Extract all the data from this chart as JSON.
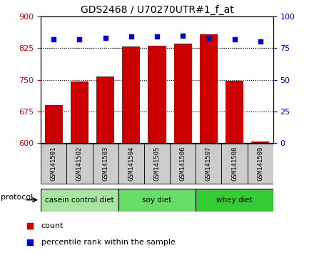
{
  "title": "GDS2468 / U70270UTR#1_f_at",
  "samples": [
    "GSM141501",
    "GSM141502",
    "GSM141503",
    "GSM141504",
    "GSM141505",
    "GSM141506",
    "GSM141507",
    "GSM141508",
    "GSM141509"
  ],
  "counts": [
    690,
    745,
    757,
    828,
    831,
    835,
    858,
    748,
    603
  ],
  "percentile_ranks": [
    82,
    82,
    83,
    84,
    84,
    85,
    83,
    82,
    80
  ],
  "ylim_left": [
    600,
    900
  ],
  "ylim_right": [
    0,
    100
  ],
  "yticks_left": [
    600,
    675,
    750,
    825,
    900
  ],
  "yticks_right": [
    0,
    25,
    50,
    75,
    100
  ],
  "bar_color": "#cc0000",
  "dot_color": "#0000cc",
  "protocol_groups": [
    {
      "label": "casein control diet",
      "start": 0,
      "end": 3
    },
    {
      "label": "soy diet",
      "start": 3,
      "end": 6
    },
    {
      "label": "whey diet",
      "start": 6,
      "end": 9
    }
  ],
  "protocol_group_colors": [
    "#a8e6a0",
    "#66dd66",
    "#33cc33"
  ],
  "protocol_label": "protocol",
  "legend_count_label": "count",
  "legend_pct_label": "percentile rank within the sample",
  "background_color": "#ffffff",
  "tick_label_color_left": "#cc0000",
  "tick_label_color_right": "#0000cc",
  "bar_width": 0.7,
  "base_value": 600,
  "xtick_box_color": "#cccccc"
}
